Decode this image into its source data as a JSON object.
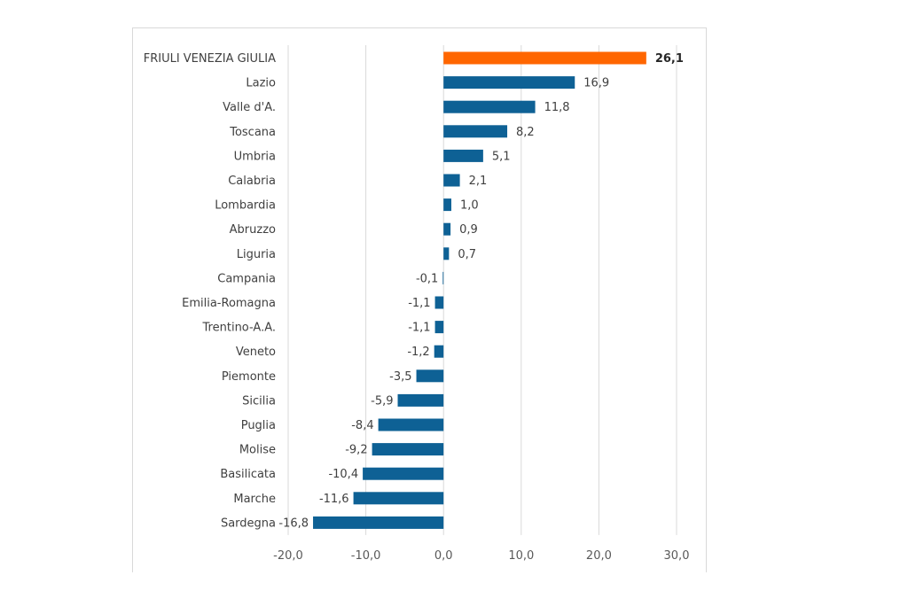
{
  "chart_data": {
    "type": "bar",
    "orientation": "horizontal",
    "categories": [
      "FRIULI VENEZIA GIULIA",
      "Lazio",
      "Valle d'A.",
      "Toscana",
      "Umbria",
      "Calabria",
      "Lombardia",
      "Abruzzo",
      "Liguria",
      "Campania",
      "Emilia-Romagna",
      "Trentino-A.A.",
      "Veneto",
      "Piemonte",
      "Sicilia",
      "Puglia",
      "Molise",
      "Basilicata",
      "Marche",
      "Sardegna"
    ],
    "values": [
      26.1,
      16.9,
      11.8,
      8.2,
      5.1,
      2.1,
      1.0,
      0.9,
      0.7,
      -0.1,
      -1.1,
      -1.1,
      -1.2,
      -3.5,
      -5.9,
      -8.4,
      -9.2,
      -10.4,
      -11.6,
      -16.8
    ],
    "value_labels": [
      "26,1",
      "16,9",
      "11,8",
      "8,2",
      "5,1",
      "2,1",
      "1,0",
      "0,9",
      "0,7",
      "-0,1",
      "-1,1",
      "-1,1",
      "-1,2",
      "-3,5",
      "-5,9",
      "-8,4",
      "-9,2",
      "-10,4",
      "-11,6",
      "-16,8"
    ],
    "highlight_index": 0,
    "xlim": [
      -20,
      30
    ],
    "xticks": [
      -20,
      -10,
      0,
      10,
      20,
      30
    ],
    "xtick_labels": [
      "-20,0",
      "-10,0",
      "0,0",
      "10,0",
      "20,0",
      "30,0"
    ],
    "grid": true,
    "legend": "none",
    "colors": {
      "bar": "#0e6195",
      "highlight": "#ff6600",
      "grid": "#d9d9d9"
    }
  }
}
